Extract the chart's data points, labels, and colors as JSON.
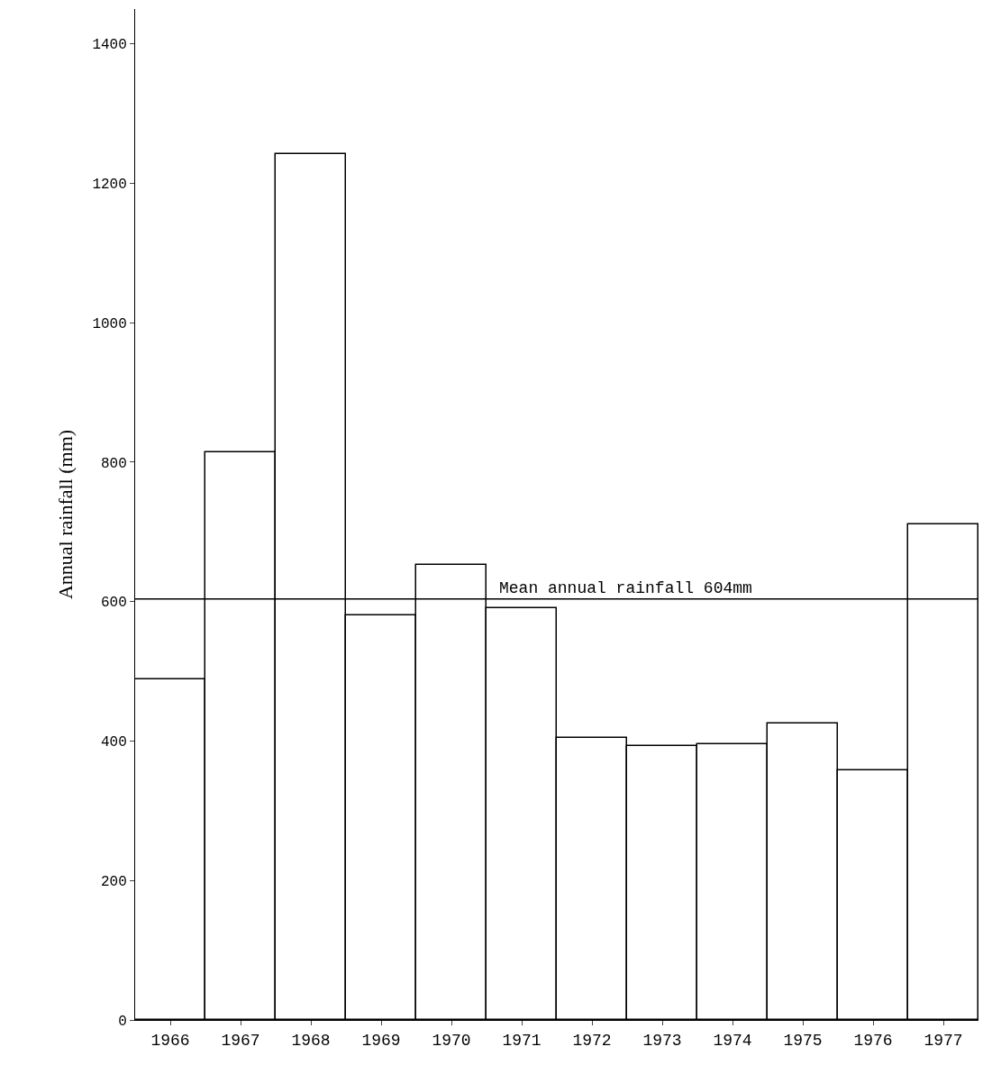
{
  "chart_data": {
    "type": "bar",
    "ylabel": "Annual rainfall (mm)",
    "categories": [
      "1966",
      "1967",
      "1968",
      "1969",
      "1970",
      "1971",
      "1972",
      "1973",
      "1974",
      "1975",
      "1976",
      "1977"
    ],
    "values": [
      488,
      814,
      1242,
      580,
      652,
      591,
      404,
      393,
      395,
      425,
      358,
      711
    ],
    "color": "#ffffff",
    "ylim": [
      0,
      1450
    ],
    "yticks": [
      0,
      200,
      400,
      600,
      800,
      1000,
      1200,
      1400
    ],
    "ref_lines": [
      {
        "axis": "y",
        "value": 604,
        "label": "Mean annual rainfall 604mm",
        "color": "#000000"
      }
    ],
    "line_style": "solid"
  }
}
